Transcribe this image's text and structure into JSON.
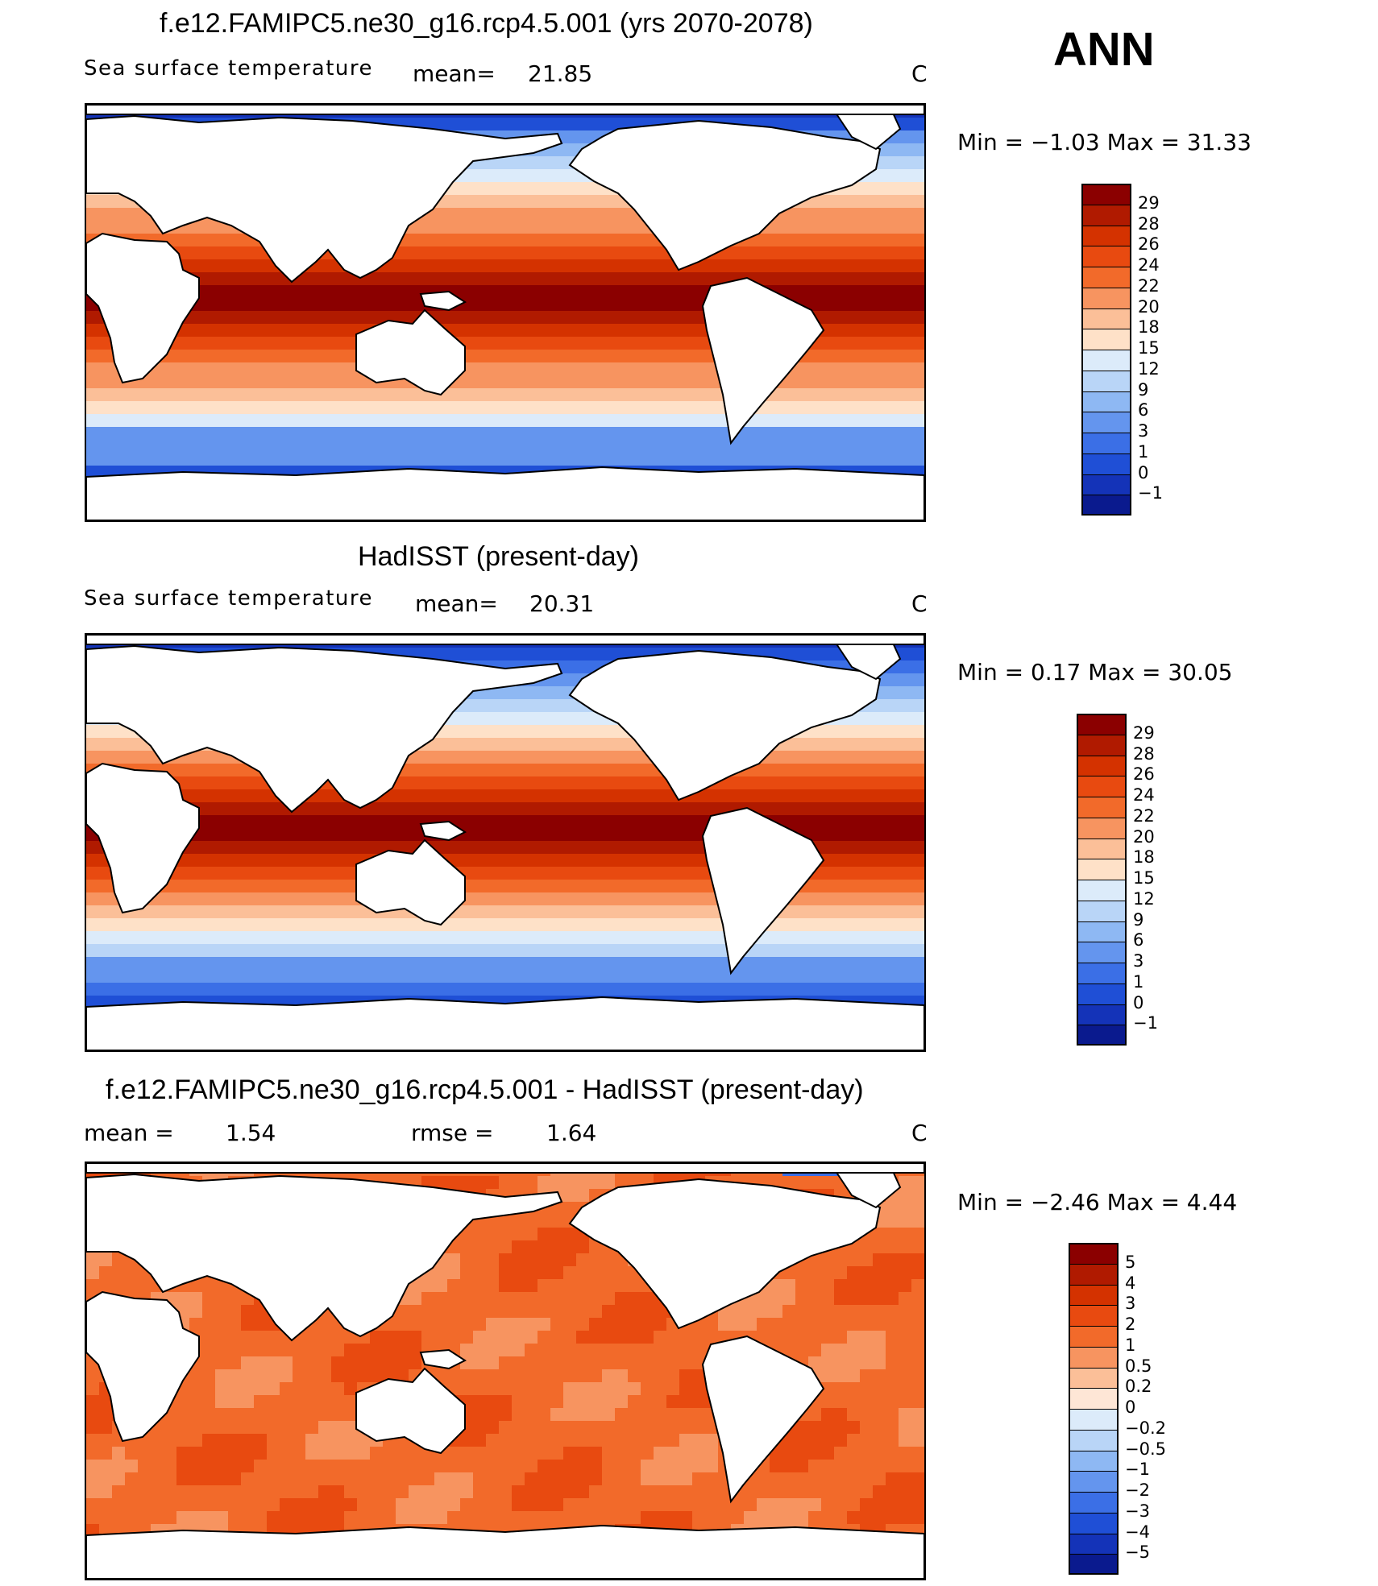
{
  "season": "ANN",
  "panels": [
    {
      "id": "model",
      "title": "f.e12.FAMIPC5.ne30_g16.rcp4.5.001 (yrs 2070-2078)",
      "left_text": "Sea surface temperature",
      "mean_label": "mean=",
      "mean_value": "21.85",
      "rmse_label": "",
      "rmse_value": "",
      "units": "C",
      "minmax": "Min =   −1.03 Max =   31.33",
      "colorbar_labels": [
        "29",
        "28",
        "26",
        "24",
        "22",
        "20",
        "18",
        "15",
        "12",
        "9",
        "6",
        "3",
        "1",
        "0",
        "−1"
      ],
      "colorbar_colors": [
        "#8b0000",
        "#b01a00",
        "#d43200",
        "#e84a10",
        "#f26a2a",
        "#f79460",
        "#fbbf98",
        "#fee1c8",
        "#dcebfa",
        "#b9d5f7",
        "#8eb8f3",
        "#6495ee",
        "#3b6fe6",
        "#1f4fd6",
        "#1433b8",
        "#0a1a8e"
      ]
    },
    {
      "id": "obs",
      "title": "HadISST (present-day)",
      "left_text": "Sea surface temperature",
      "mean_label": "mean=",
      "mean_value": "20.31",
      "rmse_label": "",
      "rmse_value": "",
      "units": "C",
      "minmax": "Min =    0.17  Max =   30.05",
      "colorbar_labels": [
        "29",
        "28",
        "26",
        "24",
        "22",
        "20",
        "18",
        "15",
        "12",
        "9",
        "6",
        "3",
        "1",
        "0",
        "−1"
      ],
      "colorbar_colors": [
        "#8b0000",
        "#b01a00",
        "#d43200",
        "#e84a10",
        "#f26a2a",
        "#f79460",
        "#fbbf98",
        "#fee1c8",
        "#dcebfa",
        "#b9d5f7",
        "#8eb8f3",
        "#6495ee",
        "#3b6fe6",
        "#1f4fd6",
        "#1433b8",
        "#0a1a8e"
      ]
    },
    {
      "id": "diff",
      "title": "f.e12.FAMIPC5.ne30_g16.rcp4.5.001 - HadISST (present-day)",
      "left_text": "mean =",
      "mean_label": "",
      "mean_value": "1.54",
      "rmse_label": "rmse =",
      "rmse_value": "1.64",
      "units": "C",
      "minmax": "Min =   −2.46 Max =     4.44",
      "colorbar_labels": [
        "5",
        "4",
        "3",
        "2",
        "1",
        "0.5",
        "0.2",
        "0",
        "−0.2",
        "−0.5",
        "−1",
        "−2",
        "−3",
        "−4",
        "−5"
      ],
      "colorbar_colors": [
        "#8b0000",
        "#b01a00",
        "#d43200",
        "#e84a10",
        "#f26a2a",
        "#f79460",
        "#fbbf98",
        "#fee6d6",
        "#dcebfa",
        "#b9d5f7",
        "#8eb8f3",
        "#6495ee",
        "#3b6fe6",
        "#1f4fd6",
        "#1433b8",
        "#0a1a8e"
      ]
    }
  ],
  "colors": {
    "land": "#ffffff",
    "coastline": "#000000"
  }
}
